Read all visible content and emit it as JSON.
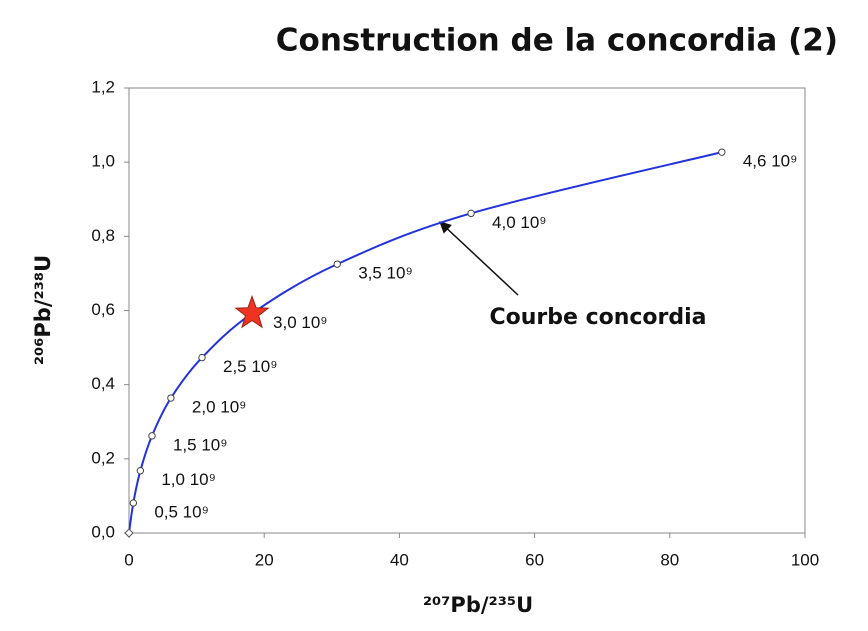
{
  "chart_data": {
    "type": "line",
    "title": "Construction de la concordia (2)",
    "x_label": "²⁰⁷Pb/²³⁵U",
    "y_label": "²⁰⁶Pb/²³⁸U",
    "x": [
      0,
      0.64,
      1.68,
      3.4,
      6.2,
      10.8,
      18.2,
      30.8,
      50.6,
      87.7
    ],
    "series": [
      {
        "color": "#2233dd",
        "values": [
          0,
          0.081,
          0.168,
          0.262,
          0.364,
          0.473,
          0.592,
          0.725,
          0.862,
          1.027
        ]
      }
    ],
    "point_labels": [
      null,
      "0,5 10⁹",
      "1,0 10⁹",
      "1,5 10⁹",
      "2,0 10⁹",
      "2,5 10⁹",
      "3,0 10⁹",
      "3,5 10⁹",
      "4,0 10⁹",
      "4,6 10⁹"
    ],
    "star": {
      "x": 18.2,
      "y": 0.592,
      "color": "#ee3322"
    },
    "annotation": "Courbe concordia",
    "xlim": [
      0,
      100
    ],
    "xticks": [
      0,
      20,
      40,
      60,
      80,
      100
    ],
    "ylim": [
      0,
      1.2
    ],
    "yticks": [
      {
        "value": 0,
        "label": "0,0"
      },
      {
        "value": 0.2,
        "label": "0,2"
      },
      {
        "value": 0.4,
        "label": "0,4"
      },
      {
        "value": 0.6,
        "label": "0,6"
      },
      {
        "value": 0.8,
        "label": "0,8"
      },
      {
        "value": 1.0,
        "label": "1,0"
      },
      {
        "value": 1.2,
        "label": "1,2"
      }
    ],
    "grid": false
  }
}
